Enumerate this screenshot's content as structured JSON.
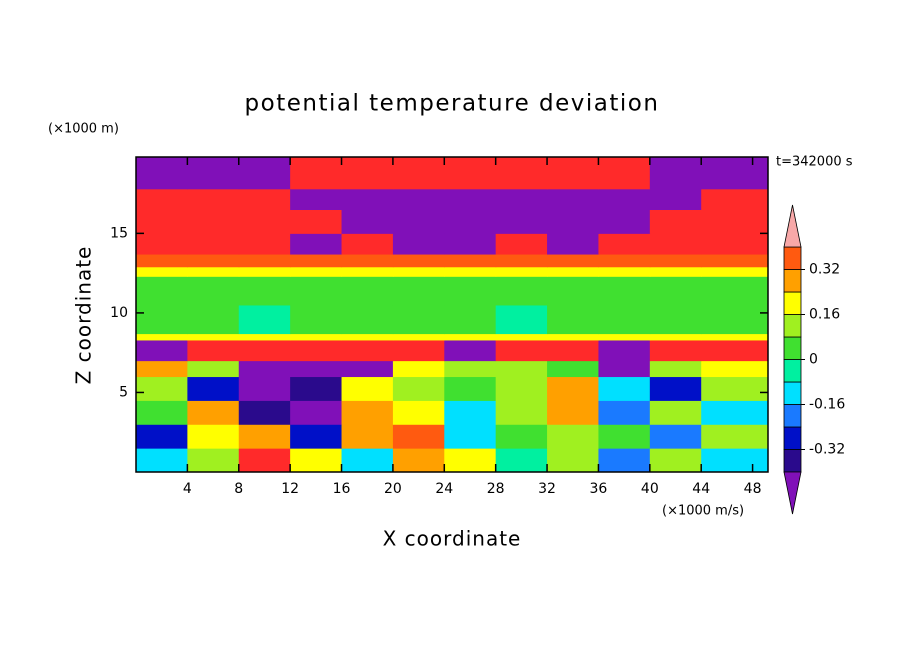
{
  "chart_data": {
    "type": "contour",
    "title": "potential temperature deviation",
    "x_label": "X coordinate",
    "y_label": "Z coordinate",
    "x_unit": "(×1000 m/s)",
    "y_unit": "(×1000 m)",
    "time_label": "t=342000 s",
    "xlim": [
      0,
      49.2
    ],
    "ylim": [
      0,
      19.8
    ],
    "xticks": [
      4,
      8,
      12,
      16,
      20,
      24,
      28,
      32,
      36,
      40,
      44,
      48
    ],
    "yticks": [
      5,
      10,
      15
    ],
    "x_edges": [
      0,
      4,
      8,
      12,
      16,
      20,
      24,
      28,
      32,
      36,
      40,
      44,
      49.2
    ],
    "y_edges": [
      0,
      1.5,
      3,
      4.5,
      6,
      7,
      8.3,
      8.7,
      10.5,
      12.3,
      12.9,
      13.7,
      15,
      16.5,
      17.8,
      19.8
    ],
    "z": [
      [
        -0.1,
        0.1,
        0.45,
        0.2,
        -0.1,
        0.3,
        0.2,
        -0.05,
        0.1,
        -0.2,
        0.1,
        -0.15
      ],
      [
        -0.3,
        0.2,
        0.3,
        -0.3,
        0.25,
        0.35,
        -0.1,
        0.05,
        0.15,
        0.05,
        -0.2,
        0.1
      ],
      [
        0.05,
        0.25,
        -0.35,
        -0.45,
        0.3,
        0.2,
        -0.15,
        0.1,
        0.3,
        -0.2,
        0.15,
        -0.1
      ],
      [
        0.15,
        -0.3,
        -0.45,
        -0.35,
        0.2,
        0.1,
        0.05,
        0.15,
        0.25,
        -0.1,
        -0.25,
        0.1
      ],
      [
        0.3,
        0.1,
        -0.45,
        -0.45,
        -0.45,
        0.2,
        0.15,
        0.1,
        0.05,
        -0.45,
        0.1,
        0.2
      ],
      [
        -0.45,
        0.45,
        0.45,
        0.45,
        0.45,
        0.45,
        -0.45,
        0.45,
        0.45,
        -0.45,
        0.45,
        0.45
      ],
      [
        0.2,
        0.22,
        0.2,
        0.18,
        0.2,
        0.22,
        0.2,
        0.2,
        0.18,
        0.2,
        0.22,
        0.2
      ],
      [
        0.05,
        0.03,
        -0.02,
        0.02,
        0.04,
        0.06,
        0.02,
        -0.03,
        0.01,
        0.04,
        0.02,
        0.03
      ],
      [
        0.05,
        0.07,
        0.06,
        0.03,
        0.05,
        0.02,
        0.04,
        0.06,
        0.03,
        0.05,
        0.04,
        0.06
      ],
      [
        0.22,
        0.2,
        0.22,
        0.22,
        0.2,
        0.22,
        0.22,
        0.2,
        0.22,
        0.22,
        0.2,
        0.22
      ],
      [
        0.35,
        0.35,
        0.36,
        0.35,
        0.34,
        0.35,
        0.36,
        0.35,
        0.35,
        0.34,
        0.35,
        0.36
      ],
      [
        0.45,
        0.45,
        0.45,
        -0.45,
        0.45,
        -0.45,
        -0.45,
        0.45,
        -0.45,
        0.45,
        0.45,
        0.45
      ],
      [
        0.45,
        0.45,
        0.45,
        0.45,
        -0.45,
        -0.45,
        -0.45,
        -0.45,
        -0.45,
        -0.45,
        0.45,
        0.45
      ],
      [
        0.45,
        0.45,
        0.45,
        -0.45,
        -0.45,
        -0.45,
        -0.45,
        -0.45,
        -0.45,
        -0.45,
        -0.45,
        0.45
      ],
      [
        -0.45,
        -0.45,
        -0.45,
        0.45,
        0.45,
        0.45,
        0.45,
        0.45,
        0.45,
        0.45,
        -0.45,
        -0.45
      ]
    ],
    "levels": [
      -0.4,
      -0.32,
      -0.24,
      -0.16,
      -0.08,
      0,
      0.08,
      0.16,
      0.24,
      0.32,
      0.4
    ],
    "colors": [
      "#8010b8",
      "#2a0a8c",
      "#0010c8",
      "#1a7aff",
      "#00e0ff",
      "#00f0a0",
      "#40e030",
      "#a0f020",
      "#ffff00",
      "#ffa000",
      "#ff5a10",
      "#ff2a2a",
      "#f8a8a8"
    ],
    "colorbar_ticks": [
      -0.32,
      -0.16,
      0,
      0.16,
      0.32
    ]
  }
}
